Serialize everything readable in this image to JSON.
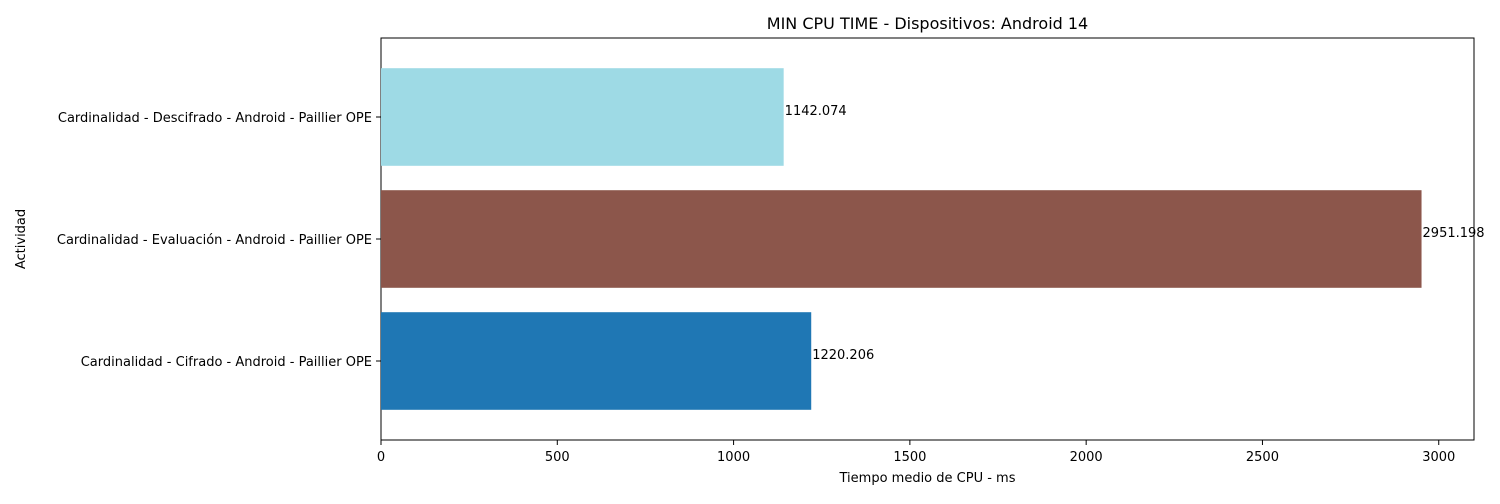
{
  "chart_data": {
    "type": "bar",
    "orientation": "horizontal",
    "title": "MIN CPU TIME - Dispositivos: Android 14",
    "xlabel": "Tiempo medio de CPU - ms",
    "ylabel": "Actividad",
    "xlim": [
      0,
      3100
    ],
    "xticks": [
      0,
      500,
      1000,
      1500,
      2000,
      2500,
      3000
    ],
    "categories": [
      "Cardinalidad - Cifrado - Android - Paillier OPE",
      "Cardinalidad - Evaluación - Android - Paillier OPE",
      "Cardinalidad - Descifrado - Android - Paillier OPE"
    ],
    "values": [
      1220.206,
      2951.198,
      1142.074
    ],
    "data_labels": [
      "1220.206",
      "2951.198",
      "1142.074"
    ],
    "colors": [
      "#1f77b4",
      "#8c564b",
      "#9edae5"
    ],
    "grid": false,
    "legend": "none"
  }
}
